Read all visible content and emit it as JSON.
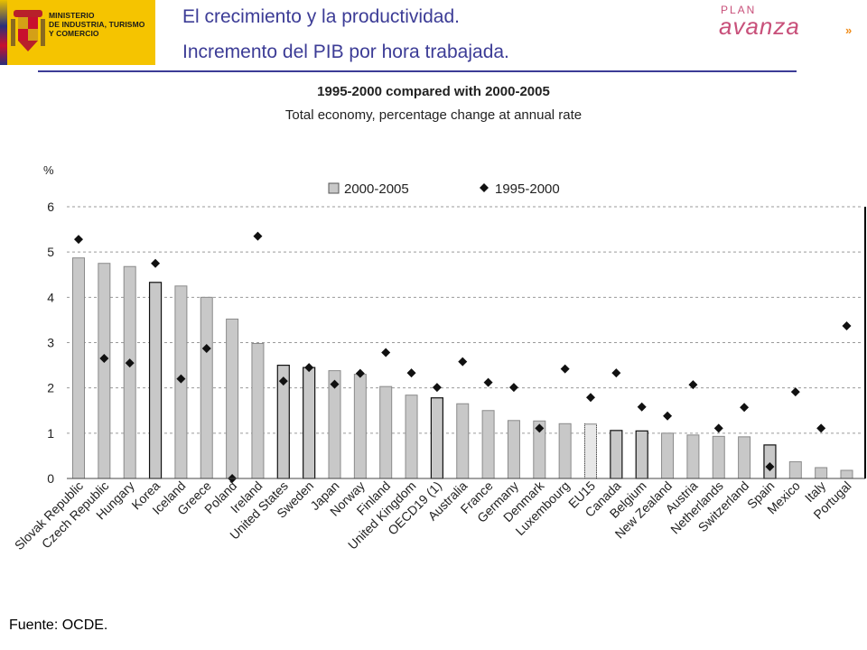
{
  "header": {
    "logo_lines": [
      "MINISTERIO",
      "DE INDUSTRIA, TURISMO",
      "Y COMERCIO"
    ],
    "title_line1": "El crecimiento y la productividad.",
    "title_line2": "Incremento del PIB por hora trabajada.",
    "brand_small": "PLAN",
    "brand_big": "avanza",
    "brand_mark": "»",
    "accent_color": "#3c3c96",
    "brand_color": "#c8507a"
  },
  "footer": {
    "source": "Fuente: OCDE."
  },
  "chart_data": {
    "type": "bar",
    "title": "1995-2000 compared with 2000-2005",
    "subtitle": "Total economy, percentage change at annual rate",
    "ylabel": "%",
    "ylim": [
      0,
      6
    ],
    "yticks": [
      0,
      1,
      2,
      3,
      4,
      5,
      6
    ],
    "grid": true,
    "legend_position": "top-center",
    "categories": [
      "Slovak Republic",
      "Czech Republic",
      "Hungary",
      "Korea",
      "Iceland",
      "Greece",
      "Poland",
      "Ireland",
      "United States",
      "Sweden",
      "Japan",
      "Norway",
      "Finland",
      "United Kingdom",
      "OECD19 (1)",
      "Australia",
      "France",
      "Germany",
      "Denmark",
      "Luxembourg",
      "EU15",
      "Canada",
      "Belgium",
      "New Zealand",
      "Austria",
      "Netherlands",
      "Switzerland",
      "Spain",
      "Mexico",
      "Italy",
      "Portugal"
    ],
    "series": [
      {
        "name": "2000-2005",
        "kind": "bar",
        "color": "#c8c8c8",
        "values": [
          4.87,
          4.75,
          4.68,
          4.33,
          4.25,
          4.0,
          3.52,
          2.98,
          2.5,
          2.45,
          2.38,
          2.3,
          2.03,
          1.84,
          1.78,
          1.65,
          1.5,
          1.28,
          1.27,
          1.21,
          1.2,
          1.06,
          1.05,
          1.0,
          0.96,
          0.93,
          0.92,
          0.74,
          0.37,
          0.24,
          0.18
        ]
      },
      {
        "name": "1995-2000",
        "kind": "marker",
        "color": "#111111",
        "values": [
          5.28,
          2.65,
          2.55,
          4.75,
          2.2,
          2.87,
          0.0,
          5.35,
          2.15,
          2.45,
          2.08,
          2.32,
          2.78,
          2.33,
          2.01,
          2.58,
          2.12,
          2.01,
          1.11,
          2.42,
          1.79,
          2.33,
          1.58,
          1.38,
          2.07,
          1.11,
          1.57,
          0.26,
          1.91,
          1.11,
          3.37
        ]
      }
    ],
    "bar_outline": [
      "light",
      "light",
      "light",
      "dark",
      "light",
      "light",
      "light",
      "light",
      "dark",
      "dark",
      "light",
      "light",
      "light",
      "light",
      "dark",
      "light",
      "light",
      "light",
      "light",
      "light",
      "dotted",
      "dark",
      "dark",
      "light",
      "light",
      "light",
      "light",
      "dark",
      "light",
      "light",
      "light"
    ]
  }
}
